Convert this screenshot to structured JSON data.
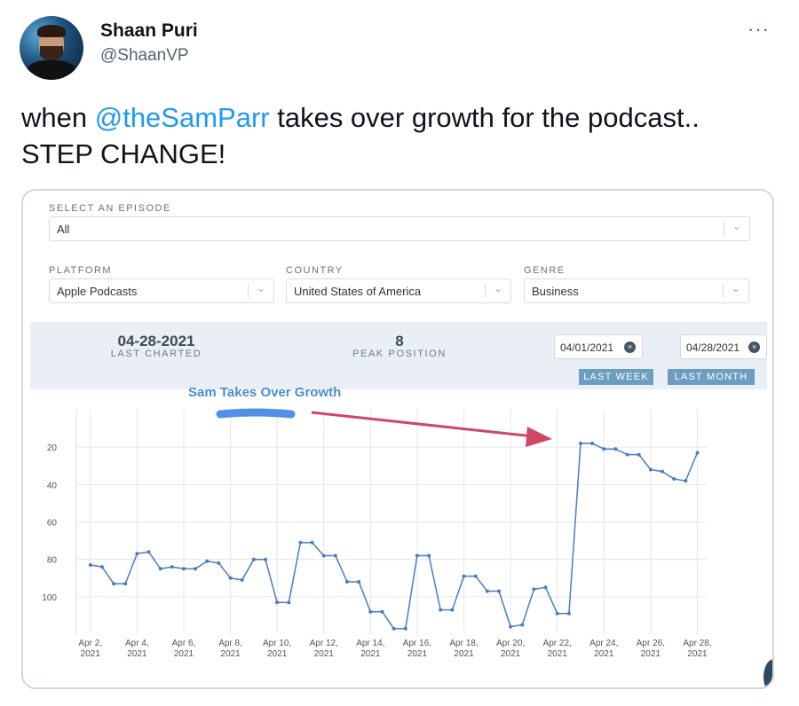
{
  "tweet": {
    "name": "Shaan Puri",
    "handle": "@ShaanVP",
    "more": "···",
    "text_before": "when ",
    "mention": "@theSamParr",
    "text_after": " takes over growth for the podcast.. STEP CHANGE!"
  },
  "dashboard": {
    "episode_label": "SELECT AN EPISODE",
    "episode_value": "All",
    "platform_label": "PLATFORM",
    "platform_value": "Apple Podcasts",
    "country_label": "COUNTRY",
    "country_value": "United States of America",
    "genre_label": "GENRE",
    "genre_value": "Business",
    "last_charted_value": "04-28-2021",
    "last_charted_label": "LAST CHARTED",
    "peak_value": "8",
    "peak_label": "PEAK POSITION",
    "start_date": "04/01/2021",
    "end_date": "04/28/2021",
    "last_week": "LAST WEEK",
    "last_month": "LAST MONTH",
    "annotation": "Sam Takes Over Growth",
    "chevron": "⌄",
    "clear": "×"
  },
  "chart_data": {
    "type": "line",
    "yreversed": true,
    "ylim": [
      0,
      120
    ],
    "yticks": [
      20,
      40,
      60,
      80,
      100
    ],
    "ticks": [
      {
        "l1": "Apr 2,",
        "l2": "2021"
      },
      {
        "l1": "Apr 4,",
        "l2": "2021"
      },
      {
        "l1": "Apr 6,",
        "l2": "2021"
      },
      {
        "l1": "Apr 8,",
        "l2": "2021"
      },
      {
        "l1": "Apr 10,",
        "l2": "2021"
      },
      {
        "l1": "Apr 12,",
        "l2": "2021"
      },
      {
        "l1": "Apr 14,",
        "l2": "2021"
      },
      {
        "l1": "Apr 16,",
        "l2": "2021"
      },
      {
        "l1": "Apr 18,",
        "l2": "2021"
      },
      {
        "l1": "Apr 20,",
        "l2": "2021"
      },
      {
        "l1": "Apr 22,",
        "l2": "2021"
      },
      {
        "l1": "Apr 24,",
        "l2": "2021"
      },
      {
        "l1": "Apr 26,",
        "l2": "2021"
      },
      {
        "l1": "Apr 28,",
        "l2": "2021"
      }
    ],
    "x": [
      2,
      2.5,
      3,
      3.5,
      4,
      4.5,
      5,
      5.5,
      6,
      6.5,
      7,
      7.5,
      8,
      8.5,
      9,
      9.5,
      10,
      10.5,
      11,
      11.5,
      12,
      12.5,
      13,
      13.5,
      14,
      14.5,
      15,
      15.5,
      16,
      16.5,
      17,
      17.5,
      18,
      18.5,
      19,
      19.5,
      20,
      20.5,
      21,
      21.5,
      22,
      22.5,
      23,
      23.5,
      24,
      24.5,
      25,
      25.5,
      26,
      26.5,
      27,
      27.5,
      28
    ],
    "y": [
      83,
      84,
      93,
      93,
      77,
      76,
      85,
      84,
      85,
      85,
      81,
      82,
      90,
      91,
      80,
      80,
      103,
      103,
      71,
      71,
      78,
      78,
      92,
      92,
      108,
      108,
      117,
      117,
      78,
      78,
      107,
      107,
      89,
      89,
      97,
      97,
      116,
      115,
      96,
      95,
      109,
      109,
      18,
      18,
      21,
      21,
      24,
      24,
      32,
      33,
      37,
      38,
      23
    ],
    "series_color": "#4a7cc4"
  }
}
